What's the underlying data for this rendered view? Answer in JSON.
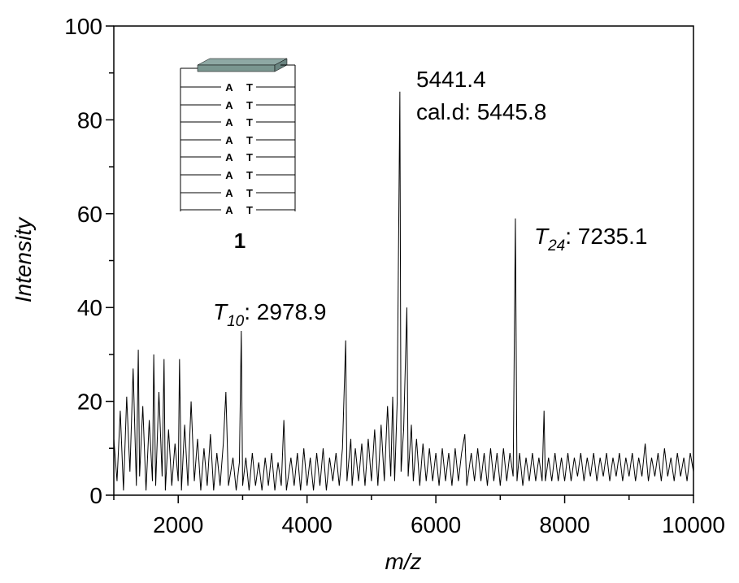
{
  "chart_data": {
    "type": "line",
    "x_label": "m/z",
    "y_label": "Intensity",
    "xlim": [
      1000,
      10000
    ],
    "ylim": [
      0,
      100
    ],
    "xticks": [
      2000,
      4000,
      6000,
      8000,
      10000
    ],
    "yticks": [
      0,
      20,
      40,
      60,
      80,
      100
    ],
    "xminorticks": [
      1000,
      3000,
      5000,
      7000,
      9000
    ],
    "yminorticks": [
      10,
      30,
      50,
      70,
      90
    ],
    "color": "#000000",
    "x": [
      1000,
      1050,
      1100,
      1150,
      1200,
      1250,
      1300,
      1350,
      1380,
      1400,
      1450,
      1500,
      1550,
      1600,
      1620,
      1650,
      1700,
      1750,
      1780,
      1800,
      1850,
      1900,
      1950,
      2000,
      2020,
      2050,
      2100,
      2150,
      2200,
      2250,
      2300,
      2350,
      2400,
      2450,
      2500,
      2550,
      2600,
      2650,
      2700,
      2740,
      2780,
      2850,
      2900,
      2950,
      2978.9,
      3000,
      3050,
      3100,
      3150,
      3200,
      3250,
      3300,
      3350,
      3400,
      3450,
      3500,
      3550,
      3600,
      3640,
      3680,
      3750,
      3800,
      3850,
      3900,
      3950,
      4000,
      4050,
      4100,
      4150,
      4200,
      4250,
      4300,
      4350,
      4400,
      4450,
      4500,
      4550,
      4600,
      4620,
      4680,
      4700,
      4750,
      4800,
      4850,
      4900,
      4950,
      5000,
      5050,
      5100,
      5150,
      5200,
      5250,
      5300,
      5330,
      5360,
      5400,
      5441.4,
      5460,
      5500,
      5550,
      5570,
      5620,
      5650,
      5700,
      5750,
      5800,
      5850,
      5900,
      5950,
      6000,
      6050,
      6100,
      6150,
      6200,
      6250,
      6300,
      6350,
      6400,
      6450,
      6480,
      6550,
      6600,
      6650,
      6700,
      6750,
      6800,
      6850,
      6900,
      6950,
      7000,
      7050,
      7100,
      7150,
      7200,
      7235.1,
      7260,
      7300,
      7350,
      7400,
      7450,
      7500,
      7550,
      7600,
      7650,
      7680,
      7700,
      7750,
      7800,
      7850,
      7900,
      7950,
      8000,
      8050,
      8100,
      8150,
      8200,
      8250,
      8300,
      8350,
      8400,
      8450,
      8500,
      8550,
      8600,
      8650,
      8700,
      8750,
      8800,
      8850,
      8900,
      8950,
      9000,
      9050,
      9100,
      9150,
      9200,
      9250,
      9300,
      9350,
      9400,
      9450,
      9500,
      9550,
      9600,
      9650,
      9700,
      9750,
      9800,
      9850,
      9900,
      9950,
      10000
    ],
    "values": [
      12,
      3,
      18,
      1,
      21,
      5,
      27,
      2,
      31,
      4,
      19,
      1,
      16,
      3,
      30,
      2,
      22,
      4,
      29,
      1,
      14,
      2,
      11,
      3,
      29,
      1,
      15,
      2,
      20,
      3,
      12,
      1,
      10,
      2,
      13,
      1,
      9,
      2,
      11,
      22,
      2,
      8,
      1,
      7,
      35,
      2,
      8,
      1,
      9,
      2,
      7,
      1,
      8,
      2,
      9,
      1,
      7,
      2,
      16,
      1,
      8,
      2,
      9,
      1,
      10,
      2,
      8,
      1,
      9,
      2,
      10,
      1,
      8,
      3,
      9,
      2,
      10,
      33,
      3,
      12,
      2,
      10,
      3,
      11,
      2,
      12,
      3,
      14,
      2,
      15,
      3,
      19,
      4,
      21,
      3,
      20,
      86,
      5,
      14,
      40,
      4,
      15,
      3,
      12,
      2,
      11,
      3,
      10,
      3,
      9,
      2,
      10,
      3,
      9,
      2,
      10,
      3,
      9,
      13,
      2,
      9,
      3,
      10,
      3,
      9,
      2,
      10,
      3,
      9,
      2,
      10,
      3,
      9,
      4,
      59,
      3,
      9,
      2,
      8,
      3,
      9,
      3,
      8,
      3,
      18,
      3,
      8,
      3,
      9,
      3,
      8,
      3,
      9,
      3,
      8,
      4,
      9,
      3,
      8,
      4,
      9,
      3,
      8,
      4,
      9,
      3,
      8,
      4,
      9,
      3,
      8,
      4,
      9,
      3,
      8,
      4,
      11,
      3,
      8,
      4,
      9,
      3,
      10,
      4,
      8,
      3,
      9,
      4,
      8,
      3,
      9,
      5
    ],
    "annotations": [
      {
        "parts": [
          "5441.4"
        ]
      },
      {
        "parts": [
          "cal.d: 5445.8"
        ]
      },
      {
        "parts": [
          "T",
          "24",
          ": 7235.1"
        ]
      },
      {
        "parts": [
          "T",
          "10",
          ": 2978.9"
        ]
      }
    ],
    "inset": {
      "pairs": [
        [
          "A",
          "T"
        ],
        [
          "A",
          "T"
        ],
        [
          "A",
          "T"
        ],
        [
          "A",
          "T"
        ],
        [
          "A",
          "T"
        ],
        [
          "A",
          "T"
        ],
        [
          "A",
          "T"
        ],
        [
          "A",
          "T"
        ]
      ],
      "label": "1"
    }
  }
}
